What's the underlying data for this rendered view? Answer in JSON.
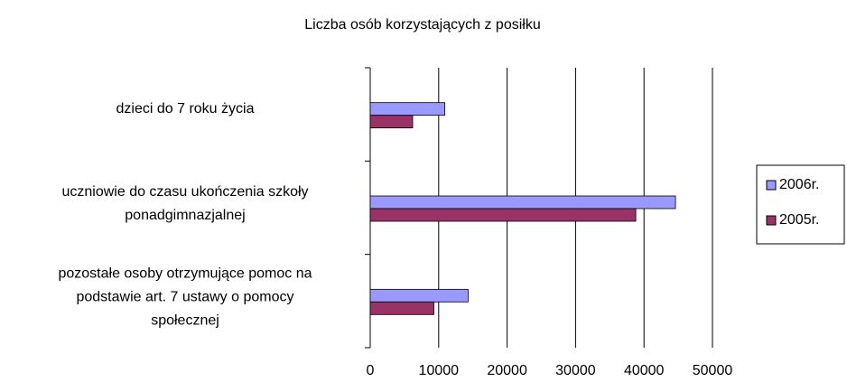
{
  "chart_data": {
    "type": "bar",
    "orientation": "horizontal",
    "title": "Liczba osób korzystających z posiłku",
    "categories": [
      [
        "dzieci do 7 roku życia"
      ],
      [
        "uczniowie do czasu ukończenia szkoły",
        "ponadgimnazjalnej"
      ],
      [
        "pozostałe osoby otrzymujące pomoc na",
        "podstawie art. 7 ustawy o pomocy",
        "społecznej"
      ]
    ],
    "series": [
      {
        "name": "2006r.",
        "color": "#9999ff",
        "values": [
          10900,
          44600,
          14300
        ]
      },
      {
        "name": "2005r.",
        "color": "#993366",
        "values": [
          6200,
          38800,
          9300
        ]
      }
    ],
    "xlim": [
      0,
      50000
    ],
    "xticks": [
      0,
      10000,
      20000,
      30000,
      40000,
      50000
    ],
    "grid": true,
    "legend": "right"
  }
}
